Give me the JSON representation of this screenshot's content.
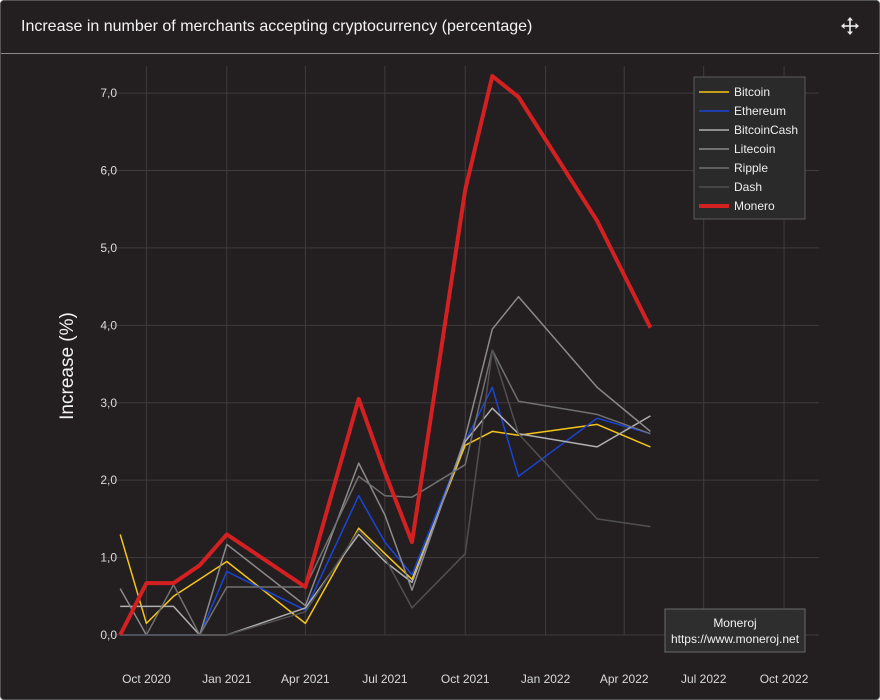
{
  "panel": {
    "title": "Increase in number of merchants accepting cryptocurrency (percentage)",
    "move_icon": "move-arrows-icon"
  },
  "source_box": {
    "line1": "Moneroj",
    "line2": "https://www.moneroj.net"
  },
  "chart_data": {
    "type": "line",
    "title": "",
    "xlabel": "",
    "ylabel": "Increase (%)",
    "ylim": [
      0,
      7.35
    ],
    "y_ticks": [
      0,
      1,
      2,
      3,
      4,
      5,
      6,
      7
    ],
    "y_tick_labels": [
      "0,0",
      "1,0",
      "2,0",
      "3,0",
      "4,0",
      "5,0",
      "6,0",
      "7,0"
    ],
    "xlim": [
      "2020-08-10",
      "2022-11-10"
    ],
    "x_ticks": [
      "2020-10-01",
      "2021-01-01",
      "2021-04-01",
      "2021-07-01",
      "2021-10-01",
      "2022-01-01",
      "2022-04-01",
      "2022-07-01",
      "2022-10-01"
    ],
    "x_tick_labels": [
      "Oct 2020",
      "Jan 2021",
      "Apr 2021",
      "Jul 2021",
      "Oct 2021",
      "Jan 2022",
      "Apr 2022",
      "Jul 2022",
      "Oct 2022"
    ],
    "grid": true,
    "legend_position": "top-right",
    "x": [
      "2020-09-01",
      "2020-10-01",
      "2020-11-01",
      "2020-12-01",
      "2021-01-01",
      "2021-04-01",
      "2021-06-01",
      "2021-07-01",
      "2021-08-01",
      "2021-10-01",
      "2021-11-01",
      "2021-12-01",
      "2022-03-01",
      "2022-05-01"
    ],
    "series": [
      {
        "name": "Bitcoin",
        "color": "#f5c518",
        "width": 1.5,
        "values": [
          1.3,
          0.15,
          0.5,
          0.72,
          0.95,
          0.15,
          1.38,
          1.05,
          0.72,
          2.45,
          2.63,
          2.58,
          2.72,
          2.43
        ]
      },
      {
        "name": "Ethereum",
        "color": "#1a45d8",
        "width": 1.5,
        "values": [
          0.0,
          0.0,
          0.0,
          0.0,
          0.82,
          0.32,
          1.8,
          1.2,
          0.78,
          2.5,
          3.2,
          2.05,
          2.8,
          2.6
        ]
      },
      {
        "name": "BitcoinCash",
        "color": "#b0b0b0",
        "width": 1.5,
        "values": [
          0.37,
          0.37,
          0.37,
          0.0,
          0.0,
          0.35,
          1.3,
          0.95,
          0.68,
          2.5,
          2.93,
          2.6,
          2.43,
          2.83
        ]
      },
      {
        "name": "Litecoin",
        "color": "#8a8a8a",
        "width": 1.5,
        "values": [
          0.6,
          0.0,
          0.0,
          0.0,
          1.17,
          0.38,
          2.22,
          1.55,
          0.58,
          2.55,
          3.95,
          4.37,
          3.2,
          2.63
        ]
      },
      {
        "name": "Ripple",
        "color": "#707070",
        "width": 1.5,
        "values": [
          0.0,
          0.0,
          0.65,
          0.0,
          0.62,
          0.62,
          2.05,
          1.8,
          1.78,
          2.2,
          3.68,
          3.02,
          2.85,
          2.6
        ]
      },
      {
        "name": "Dash",
        "color": "#505050",
        "width": 1.5,
        "values": [
          0.0,
          0.0,
          0.0,
          0.0,
          0.0,
          0.3,
          1.35,
          1.0,
          0.35,
          1.05,
          3.68,
          2.6,
          1.5,
          1.4
        ]
      },
      {
        "name": "Monero",
        "color": "#d42020",
        "width": 4,
        "values": [
          0.0,
          0.67,
          0.67,
          0.9,
          1.3,
          0.62,
          3.05,
          2.1,
          1.2,
          5.75,
          7.22,
          6.95,
          5.35,
          3.97
        ]
      }
    ]
  }
}
